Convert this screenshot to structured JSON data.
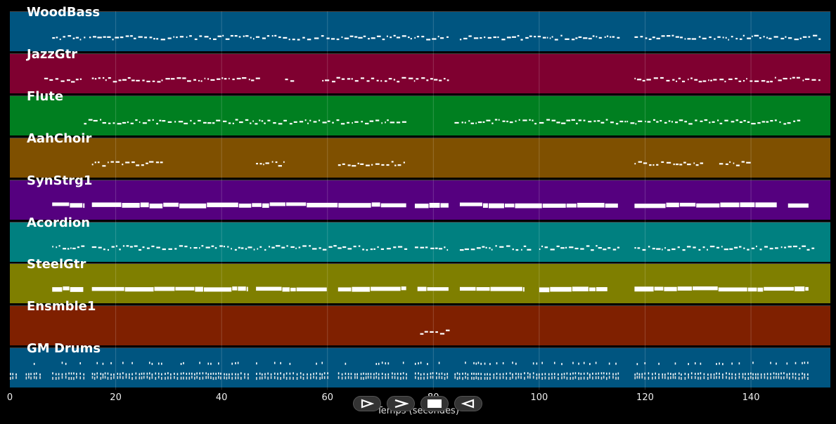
{
  "chart_data": {
    "type": "piano-roll",
    "xlabel": "Temps (secondes)",
    "xlim": [
      0,
      155
    ],
    "xticks": [
      0,
      20,
      40,
      60,
      80,
      100,
      120,
      140
    ],
    "tracks": [
      {
        "name": "WoodBass",
        "color": "#005580",
        "segments": [
          [
            8,
            14
          ],
          [
            15,
            57
          ],
          [
            57.5,
            83
          ],
          [
            85,
            115
          ],
          [
            118,
            153
          ]
        ],
        "style": "dots"
      },
      {
        "name": "JazzGtr",
        "color": "#7f0030",
        "segments": [
          [
            6.5,
            13.5
          ],
          [
            15.5,
            47
          ],
          [
            52,
            54
          ],
          [
            59,
            83
          ],
          [
            118,
            153
          ]
        ],
        "style": "dots"
      },
      {
        "name": "Flute",
        "color": "#007f20",
        "segments": [
          [
            14,
            75
          ],
          [
            84,
            149
          ]
        ],
        "style": "dots"
      },
      {
        "name": "AahChoir",
        "color": "#7f5000",
        "segments": [
          [
            15.5,
            29
          ],
          [
            46.5,
            52
          ],
          [
            62,
            75
          ],
          [
            118,
            131
          ],
          [
            134,
            140
          ]
        ],
        "style": "dots"
      },
      {
        "name": "SynStrg1",
        "color": "#55007f",
        "segments": [
          [
            8,
            14
          ],
          [
            15.5,
            75
          ],
          [
            76.5,
            83
          ],
          [
            85,
            115
          ],
          [
            118,
            145
          ],
          [
            147,
            151
          ]
        ],
        "style": "bars"
      },
      {
        "name": "Acordion",
        "color": "#008080",
        "segments": [
          [
            8,
            14
          ],
          [
            15.5,
            75
          ],
          [
            76.5,
            83
          ],
          [
            85,
            98
          ],
          [
            100,
            115
          ],
          [
            118,
            152
          ]
        ],
        "style": "dots"
      },
      {
        "name": "SteelGtr",
        "color": "#7f7f00",
        "segments": [
          [
            8,
            14
          ],
          [
            15.5,
            45
          ],
          [
            46.5,
            60
          ],
          [
            62,
            75
          ],
          [
            77,
            83
          ],
          [
            85,
            97
          ],
          [
            100,
            113
          ],
          [
            118,
            151
          ]
        ],
        "style": "bars"
      },
      {
        "name": "Ensmble1",
        "color": "#7f2000",
        "segments": [
          [
            77.5,
            83
          ]
        ],
        "style": "dots"
      },
      {
        "name": "GM Drums",
        "color": "#005580",
        "segments": [
          [
            0,
            1.5
          ],
          [
            3,
            6
          ],
          [
            8,
            14
          ],
          [
            15.5,
            45
          ],
          [
            46.5,
            60
          ],
          [
            62,
            75
          ],
          [
            76.5,
            83
          ],
          [
            84,
            115
          ],
          [
            118,
            151
          ]
        ],
        "style": "drums"
      }
    ]
  },
  "controls": {
    "play_icon": "play-icon",
    "forward_icon": "forward-icon",
    "stop_icon": "stop-icon",
    "back_icon": "back-icon"
  }
}
